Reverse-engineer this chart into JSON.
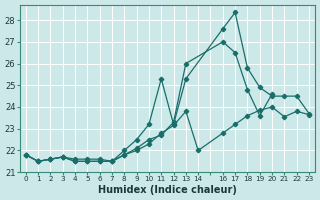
{
  "xlabel": "Humidex (Indice chaleur)",
  "bg_color": "#cde8e8",
  "grid_color": "#b8d8d8",
  "line_color": "#1a6e6a",
  "xlim": [
    -0.5,
    23.5
  ],
  "ylim": [
    21,
    28.7
  ],
  "yticks": [
    21,
    22,
    23,
    24,
    25,
    26,
    27,
    28
  ],
  "s1x": [
    0,
    1,
    2,
    3,
    4,
    5,
    6,
    7,
    8,
    9,
    10,
    11,
    12,
    13,
    16,
    17,
    18,
    19,
    20
  ],
  "s1y": [
    21.8,
    21.5,
    21.6,
    21.7,
    21.6,
    21.6,
    21.6,
    21.5,
    21.8,
    22.1,
    22.5,
    22.7,
    23.3,
    26.0,
    27.0,
    26.5,
    24.8,
    23.6,
    24.6
  ],
  "s2x": [
    0,
    1,
    2,
    3,
    4,
    5,
    6,
    7,
    8,
    9,
    10,
    11,
    12,
    13,
    16,
    17,
    18,
    19,
    20,
    21,
    22,
    23
  ],
  "s2y": [
    21.8,
    21.5,
    21.6,
    21.7,
    21.5,
    21.5,
    21.5,
    21.5,
    22.0,
    22.5,
    23.2,
    25.3,
    23.2,
    25.3,
    27.6,
    28.35,
    25.8,
    24.9,
    24.5,
    24.5,
    24.5,
    23.7
  ],
  "s3x": [
    0,
    1,
    2,
    3,
    4,
    5,
    6,
    7,
    8,
    9,
    10,
    11,
    12,
    13,
    14,
    16,
    17,
    18,
    19,
    20,
    21,
    22,
    23
  ],
  "s3y": [
    21.8,
    21.5,
    21.6,
    21.7,
    21.5,
    21.5,
    21.5,
    21.5,
    21.8,
    22.0,
    22.3,
    22.8,
    23.15,
    23.8,
    22.0,
    22.8,
    23.2,
    23.6,
    23.85,
    24.0,
    23.55,
    23.8,
    23.65
  ]
}
